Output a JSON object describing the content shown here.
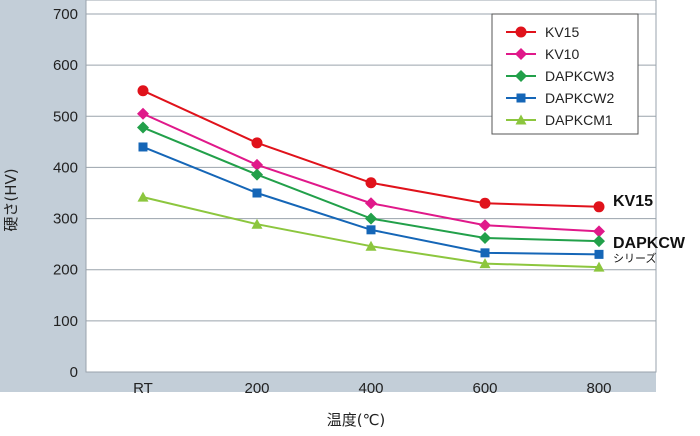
{
  "chart_data": {
    "type": "line",
    "title": "",
    "xlabel": "温度(℃)",
    "ylabel": "硬さ(HV)",
    "categories": [
      "RT",
      "200",
      "400",
      "600",
      "800"
    ],
    "ylim": [
      0,
      700
    ],
    "yticks": [
      0,
      100,
      200,
      300,
      400,
      500,
      600,
      700
    ],
    "grid": true,
    "legend_position": "top-right",
    "series": [
      {
        "name": "KV15",
        "color": "#e0121b",
        "marker": "circle",
        "values": [
          550,
          448,
          370,
          330,
          323
        ]
      },
      {
        "name": "KV10",
        "color": "#e0198a",
        "marker": "diamond",
        "values": [
          505,
          405,
          330,
          287,
          275
        ]
      },
      {
        "name": "DAPKCW3",
        "color": "#22a04a",
        "marker": "diamond",
        "values": [
          478,
          386,
          300,
          262,
          256
        ]
      },
      {
        "name": "DAPKCW2",
        "color": "#1566b7",
        "marker": "square",
        "values": [
          440,
          350,
          278,
          233,
          230
        ]
      },
      {
        "name": "DAPKCM1",
        "color": "#8cc63e",
        "marker": "triangle",
        "values": [
          342,
          289,
          246,
          212,
          205
        ]
      }
    ],
    "annotations": [
      {
        "text": "KV15",
        "series": "KV15",
        "style": "bold"
      },
      {
        "text": "DAPKCW",
        "series": "DAPKCW",
        "style": "bold"
      },
      {
        "text": "シリーズ",
        "series": "DAPKCW",
        "style": "small"
      }
    ]
  }
}
